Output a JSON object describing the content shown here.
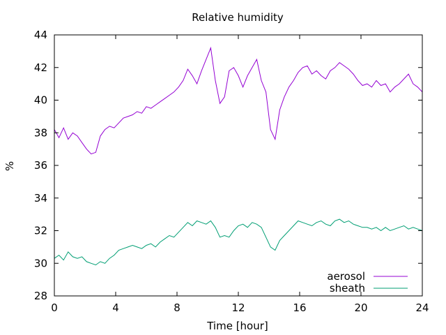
{
  "chart_data": {
    "type": "line",
    "title": "Relative humidity",
    "xlabel": "Time [hour]",
    "ylabel": "%",
    "xlim": [
      0,
      24
    ],
    "ylim": [
      28,
      44
    ],
    "xticks": [
      0,
      4,
      8,
      12,
      16,
      20,
      24
    ],
    "yticks": [
      28,
      30,
      32,
      34,
      36,
      38,
      40,
      42,
      44
    ],
    "grid": false,
    "legend_position": "bottom-right",
    "series": [
      {
        "name": "aerosol",
        "color": "#9400d3",
        "points": [
          [
            0.0,
            38.2
          ],
          [
            0.3,
            37.7
          ],
          [
            0.6,
            38.3
          ],
          [
            0.9,
            37.6
          ],
          [
            1.2,
            38.0
          ],
          [
            1.5,
            37.8
          ],
          [
            1.8,
            37.4
          ],
          [
            2.1,
            37.0
          ],
          [
            2.4,
            36.7
          ],
          [
            2.7,
            36.8
          ],
          [
            3.0,
            37.8
          ],
          [
            3.3,
            38.2
          ],
          [
            3.6,
            38.4
          ],
          [
            3.9,
            38.3
          ],
          [
            4.2,
            38.6
          ],
          [
            4.5,
            38.9
          ],
          [
            4.8,
            39.0
          ],
          [
            5.1,
            39.1
          ],
          [
            5.4,
            39.3
          ],
          [
            5.7,
            39.2
          ],
          [
            6.0,
            39.6
          ],
          [
            6.3,
            39.5
          ],
          [
            6.6,
            39.7
          ],
          [
            6.9,
            39.9
          ],
          [
            7.2,
            40.1
          ],
          [
            7.5,
            40.3
          ],
          [
            7.8,
            40.5
          ],
          [
            8.1,
            40.8
          ],
          [
            8.4,
            41.2
          ],
          [
            8.7,
            41.9
          ],
          [
            9.0,
            41.5
          ],
          [
            9.3,
            41.0
          ],
          [
            9.6,
            41.8
          ],
          [
            9.9,
            42.5
          ],
          [
            10.2,
            43.2
          ],
          [
            10.5,
            41.2
          ],
          [
            10.8,
            39.8
          ],
          [
            11.1,
            40.2
          ],
          [
            11.4,
            41.8
          ],
          [
            11.7,
            42.0
          ],
          [
            12.0,
            41.5
          ],
          [
            12.3,
            40.8
          ],
          [
            12.6,
            41.5
          ],
          [
            12.9,
            42.0
          ],
          [
            13.2,
            42.5
          ],
          [
            13.5,
            41.2
          ],
          [
            13.8,
            40.5
          ],
          [
            14.1,
            38.2
          ],
          [
            14.4,
            37.6
          ],
          [
            14.7,
            39.4
          ],
          [
            15.0,
            40.2
          ],
          [
            15.3,
            40.8
          ],
          [
            15.6,
            41.2
          ],
          [
            15.9,
            41.7
          ],
          [
            16.2,
            42.0
          ],
          [
            16.5,
            42.1
          ],
          [
            16.8,
            41.6
          ],
          [
            17.1,
            41.8
          ],
          [
            17.4,
            41.5
          ],
          [
            17.7,
            41.3
          ],
          [
            18.0,
            41.8
          ],
          [
            18.3,
            42.0
          ],
          [
            18.6,
            42.3
          ],
          [
            18.9,
            42.1
          ],
          [
            19.2,
            41.9
          ],
          [
            19.5,
            41.6
          ],
          [
            19.8,
            41.2
          ],
          [
            20.1,
            40.9
          ],
          [
            20.4,
            41.0
          ],
          [
            20.7,
            40.8
          ],
          [
            21.0,
            41.2
          ],
          [
            21.3,
            40.9
          ],
          [
            21.6,
            41.0
          ],
          [
            21.9,
            40.5
          ],
          [
            22.2,
            40.8
          ],
          [
            22.5,
            41.0
          ],
          [
            22.8,
            41.3
          ],
          [
            23.1,
            41.6
          ],
          [
            23.4,
            41.0
          ],
          [
            23.7,
            40.8
          ],
          [
            24.0,
            40.5
          ]
        ]
      },
      {
        "name": "sheath",
        "color": "#009e73",
        "points": [
          [
            0.0,
            30.3
          ],
          [
            0.3,
            30.5
          ],
          [
            0.6,
            30.2
          ],
          [
            0.9,
            30.7
          ],
          [
            1.2,
            30.4
          ],
          [
            1.5,
            30.3
          ],
          [
            1.8,
            30.4
          ],
          [
            2.1,
            30.1
          ],
          [
            2.4,
            30.0
          ],
          [
            2.7,
            29.9
          ],
          [
            3.0,
            30.1
          ],
          [
            3.3,
            30.0
          ],
          [
            3.6,
            30.3
          ],
          [
            3.9,
            30.5
          ],
          [
            4.2,
            30.8
          ],
          [
            4.5,
            30.9
          ],
          [
            4.8,
            31.0
          ],
          [
            5.1,
            31.1
          ],
          [
            5.4,
            31.0
          ],
          [
            5.7,
            30.9
          ],
          [
            6.0,
            31.1
          ],
          [
            6.3,
            31.2
          ],
          [
            6.6,
            31.0
          ],
          [
            6.9,
            31.3
          ],
          [
            7.2,
            31.5
          ],
          [
            7.5,
            31.7
          ],
          [
            7.8,
            31.6
          ],
          [
            8.1,
            31.9
          ],
          [
            8.4,
            32.2
          ],
          [
            8.7,
            32.5
          ],
          [
            9.0,
            32.3
          ],
          [
            9.3,
            32.6
          ],
          [
            9.6,
            32.5
          ],
          [
            9.9,
            32.4
          ],
          [
            10.2,
            32.6
          ],
          [
            10.5,
            32.2
          ],
          [
            10.8,
            31.6
          ],
          [
            11.1,
            31.7
          ],
          [
            11.4,
            31.6
          ],
          [
            11.7,
            32.0
          ],
          [
            12.0,
            32.3
          ],
          [
            12.3,
            32.4
          ],
          [
            12.6,
            32.2
          ],
          [
            12.9,
            32.5
          ],
          [
            13.2,
            32.4
          ],
          [
            13.5,
            32.2
          ],
          [
            13.8,
            31.6
          ],
          [
            14.1,
            31.0
          ],
          [
            14.4,
            30.8
          ],
          [
            14.7,
            31.4
          ],
          [
            15.0,
            31.7
          ],
          [
            15.3,
            32.0
          ],
          [
            15.6,
            32.3
          ],
          [
            15.9,
            32.6
          ],
          [
            16.2,
            32.5
          ],
          [
            16.5,
            32.4
          ],
          [
            16.8,
            32.3
          ],
          [
            17.1,
            32.5
          ],
          [
            17.4,
            32.6
          ],
          [
            17.7,
            32.4
          ],
          [
            18.0,
            32.3
          ],
          [
            18.3,
            32.6
          ],
          [
            18.6,
            32.7
          ],
          [
            18.9,
            32.5
          ],
          [
            19.2,
            32.6
          ],
          [
            19.5,
            32.4
          ],
          [
            19.8,
            32.3
          ],
          [
            20.1,
            32.2
          ],
          [
            20.4,
            32.2
          ],
          [
            20.7,
            32.1
          ],
          [
            21.0,
            32.2
          ],
          [
            21.3,
            32.0
          ],
          [
            21.6,
            32.2
          ],
          [
            21.9,
            32.0
          ],
          [
            22.2,
            32.1
          ],
          [
            22.5,
            32.2
          ],
          [
            22.8,
            32.3
          ],
          [
            23.1,
            32.1
          ],
          [
            23.4,
            32.2
          ],
          [
            23.7,
            32.1
          ],
          [
            24.0,
            32.0
          ]
        ]
      }
    ]
  }
}
